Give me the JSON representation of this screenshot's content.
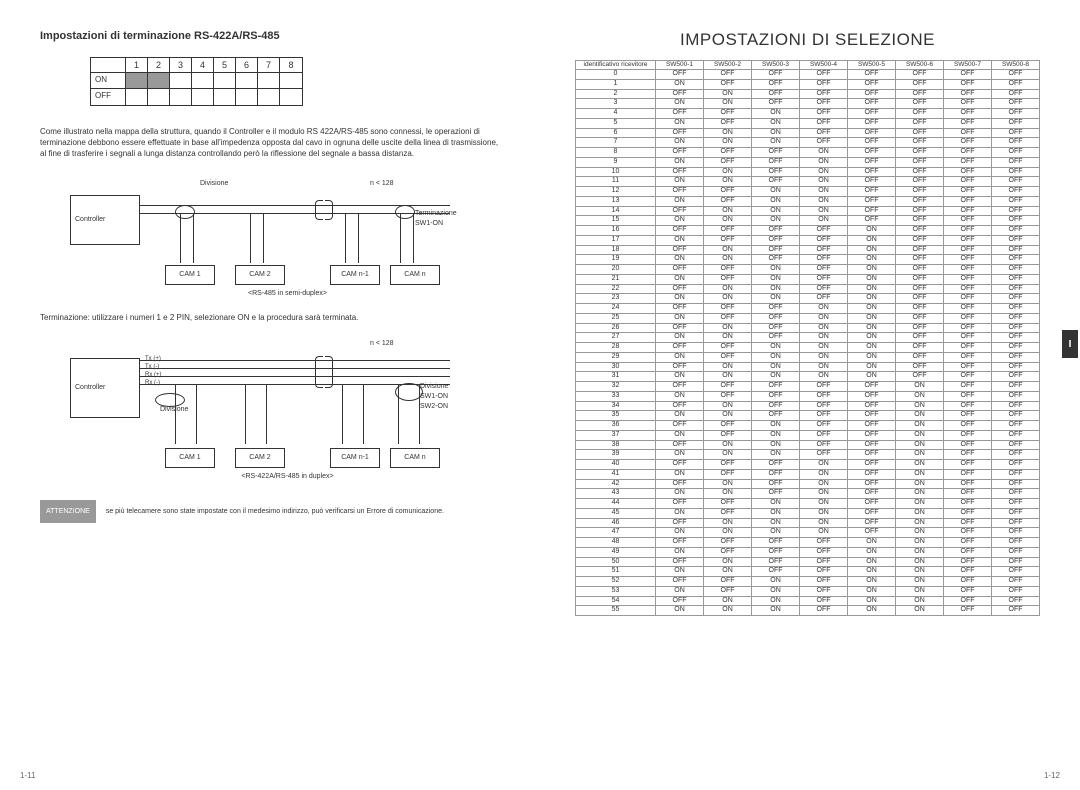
{
  "left": {
    "title": "Impostazioni di terminazione RS-422A/RS-485",
    "dip": {
      "numbers": [
        "1",
        "2",
        "3",
        "4",
        "5",
        "6",
        "7",
        "8"
      ],
      "on_label": "ON",
      "off_label": "OFF"
    },
    "para1": "Come illustrato nella mappa della struttura, quando il Controller e il modulo RS 422A/RS-485 sono connessi, le operazioni di terminazione debbono essere effettuate in base all'impedenza opposta dal cavo in ognuna delle uscite della linea di trasmissione, al fine di trasferire i segnali a lunga distanza controllando però la riflessione del segnale a bassa distanza.",
    "diag1": {
      "controller": "Controller",
      "divisione": "Divisione",
      "n_lt": "n < 128",
      "terminazione": "Terminazione",
      "sw1on": "SW1-ON",
      "cams": [
        "CAM 1",
        "CAM 2",
        "CAM n-1",
        "CAM n"
      ],
      "caption": "<RS-485 in semi-duplex>"
    },
    "para2": "Terminazione: utilizzare i numeri 1 e 2 PIN, selezionare ON e la procedura sarà terminata.",
    "diag2": {
      "controller": "Controller",
      "divisione": "Divisione",
      "n_lt": "n < 128",
      "tx_p": "Tx (+)",
      "tx_m": "Tx (-)",
      "rx_p": "Rx (+)",
      "rx_m": "Rx (-)",
      "divisione2": "Divisione",
      "sw1on": "SW1-ON",
      "sw2on": "SW2-ON",
      "cams": [
        "CAM 1",
        "CAM 2",
        "CAM n-1",
        "CAM n"
      ],
      "caption": "<RS-422A/RS-485 in duplex>"
    },
    "warn_tag": "ATTENZIONE",
    "warn_text": "se più telecamere sono state impostate con il medesimo indirizzo, può verificarsi un Errore di comunicazione.",
    "page_num": "1-11"
  },
  "right": {
    "title": "IMPOSTAZIONI DI SELEZIONE",
    "table": {
      "header_id": "identificativo ricevitore",
      "cols": [
        "SW500-1",
        "SW500-2",
        "SW500-3",
        "SW500-4",
        "SW500-5",
        "SW500-6",
        "SW500-7",
        "SW500-8"
      ],
      "num_rows": 56
    },
    "side_tab": "I",
    "page_num": "1-12"
  }
}
